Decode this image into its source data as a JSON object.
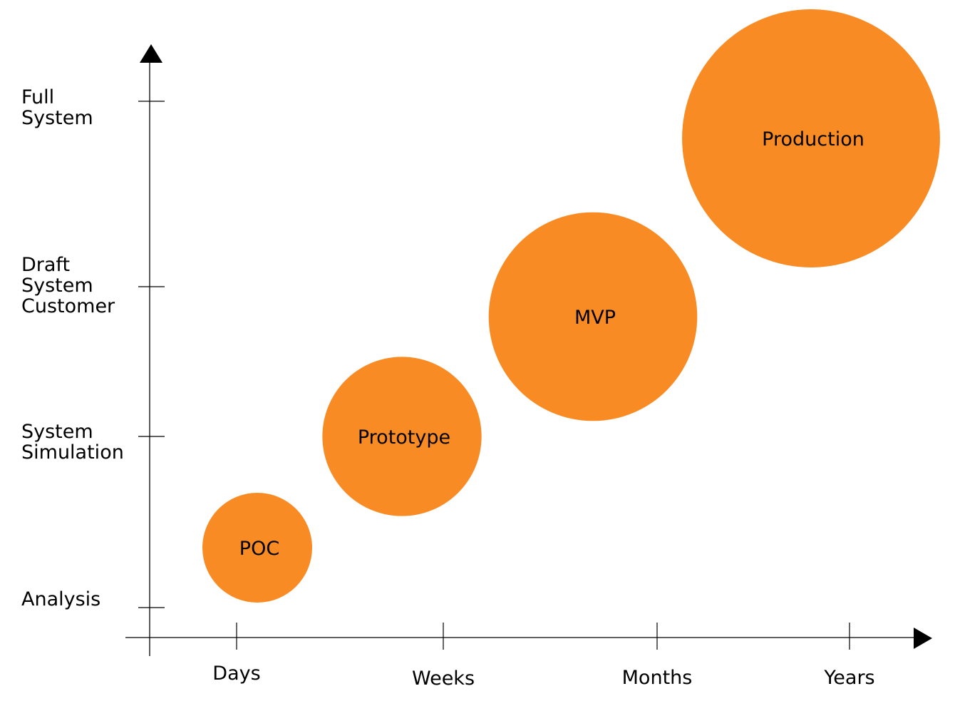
{
  "chart_data": {
    "type": "scatter",
    "x_axis": {
      "tick_labels": [
        "Days",
        "Weeks",
        "Months",
        "Years"
      ]
    },
    "y_axis": {
      "tick_labels": [
        [
          "Analysis"
        ],
        [
          "System",
          "Simulation"
        ],
        [
          "Draft",
          "System",
          "Customer"
        ],
        [
          "Full",
          "System"
        ]
      ]
    },
    "bubble_color": "#F98B24",
    "bubbles": [
      {
        "label": "POC",
        "x": 0.1,
        "y": 0.35,
        "size": 1
      },
      {
        "label": "Prototype",
        "x": 0.8,
        "y": 1.0,
        "size": 1.45
      },
      {
        "label": "MVP",
        "x": 1.7,
        "y": 1.8,
        "size": 1.9
      },
      {
        "label": "Production",
        "x": 2.8,
        "y": 2.8,
        "size": 2.35
      }
    ]
  }
}
